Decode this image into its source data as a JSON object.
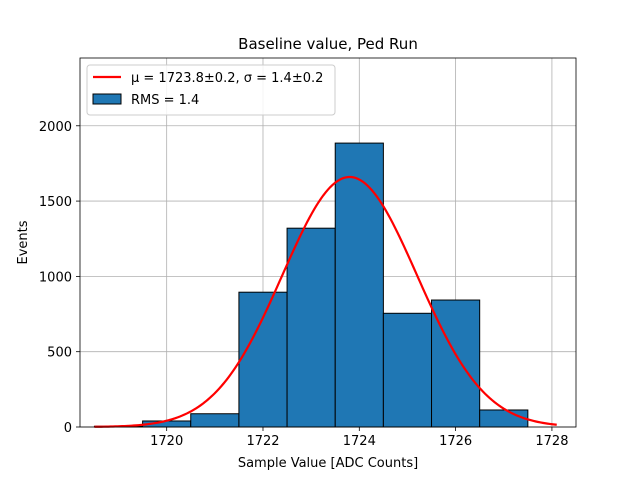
{
  "chart_data": {
    "type": "bar",
    "title": "Baseline value, Ped Run",
    "xlabel": "Sample Value [ADC Counts]",
    "ylabel": "Events",
    "xlim": [
      1718.2,
      1728.5
    ],
    "ylim": [
      0,
      2450
    ],
    "xticks": [
      1720,
      1722,
      1724,
      1726,
      1728
    ],
    "yticks": [
      0,
      500,
      1000,
      1500,
      2000
    ],
    "grid": true,
    "legend_position": "top-left",
    "histogram": {
      "name": "RMS = 1.4",
      "color": "#1f77b4",
      "bins": [
        {
          "left": 1718.5,
          "right": 1719.5,
          "count": 5
        },
        {
          "left": 1719.5,
          "right": 1720.5,
          "count": 40
        },
        {
          "left": 1720.5,
          "right": 1721.5,
          "count": 88
        },
        {
          "left": 1721.5,
          "right": 1722.5,
          "count": 895
        },
        {
          "left": 1722.5,
          "right": 1723.5,
          "count": 1320
        },
        {
          "left": 1723.5,
          "right": 1724.5,
          "count": 1885
        },
        {
          "left": 1724.5,
          "right": 1725.5,
          "count": 755
        },
        {
          "left": 1725.5,
          "right": 1726.5,
          "count": 843
        },
        {
          "left": 1726.5,
          "right": 1727.5,
          "count": 113
        }
      ]
    },
    "fit": {
      "type": "gaussian",
      "mu": 1723.8,
      "sigma": 1.4,
      "amplitude": 1660,
      "x_range": [
        1718.5,
        1728.1
      ],
      "color": "#ff0000",
      "label_mu": "μ = 1723.8±0.2",
      "label_sep": ", ",
      "label_sigma": "σ = 1.4±0.2"
    }
  }
}
